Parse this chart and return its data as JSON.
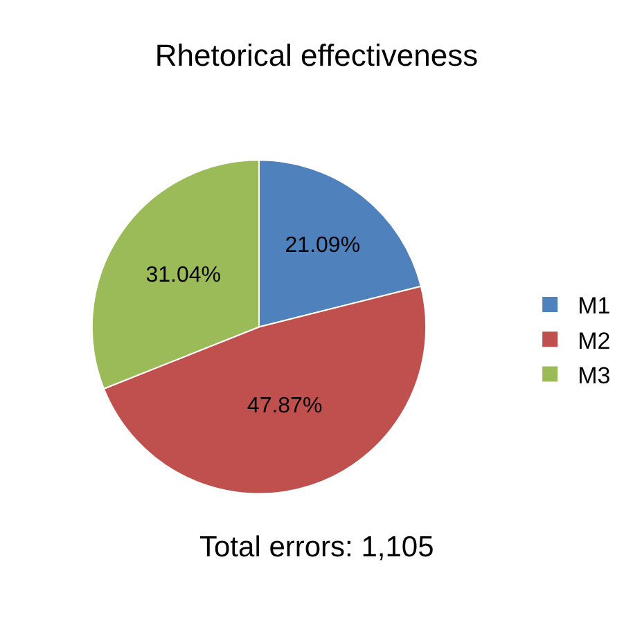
{
  "chart_data": {
    "type": "pie",
    "title": "Rhetorical effectiveness",
    "categories": [
      "M1",
      "M2",
      "M3"
    ],
    "values": [
      21.09,
      47.87,
      31.04
    ],
    "value_labels": [
      "21.09%",
      "47.87%",
      "31.04%"
    ],
    "colors": [
      "#4f81bd",
      "#c0504d",
      "#9bbb59"
    ],
    "legend": "right",
    "annotations": [
      "Total errors: 1,105"
    ]
  }
}
